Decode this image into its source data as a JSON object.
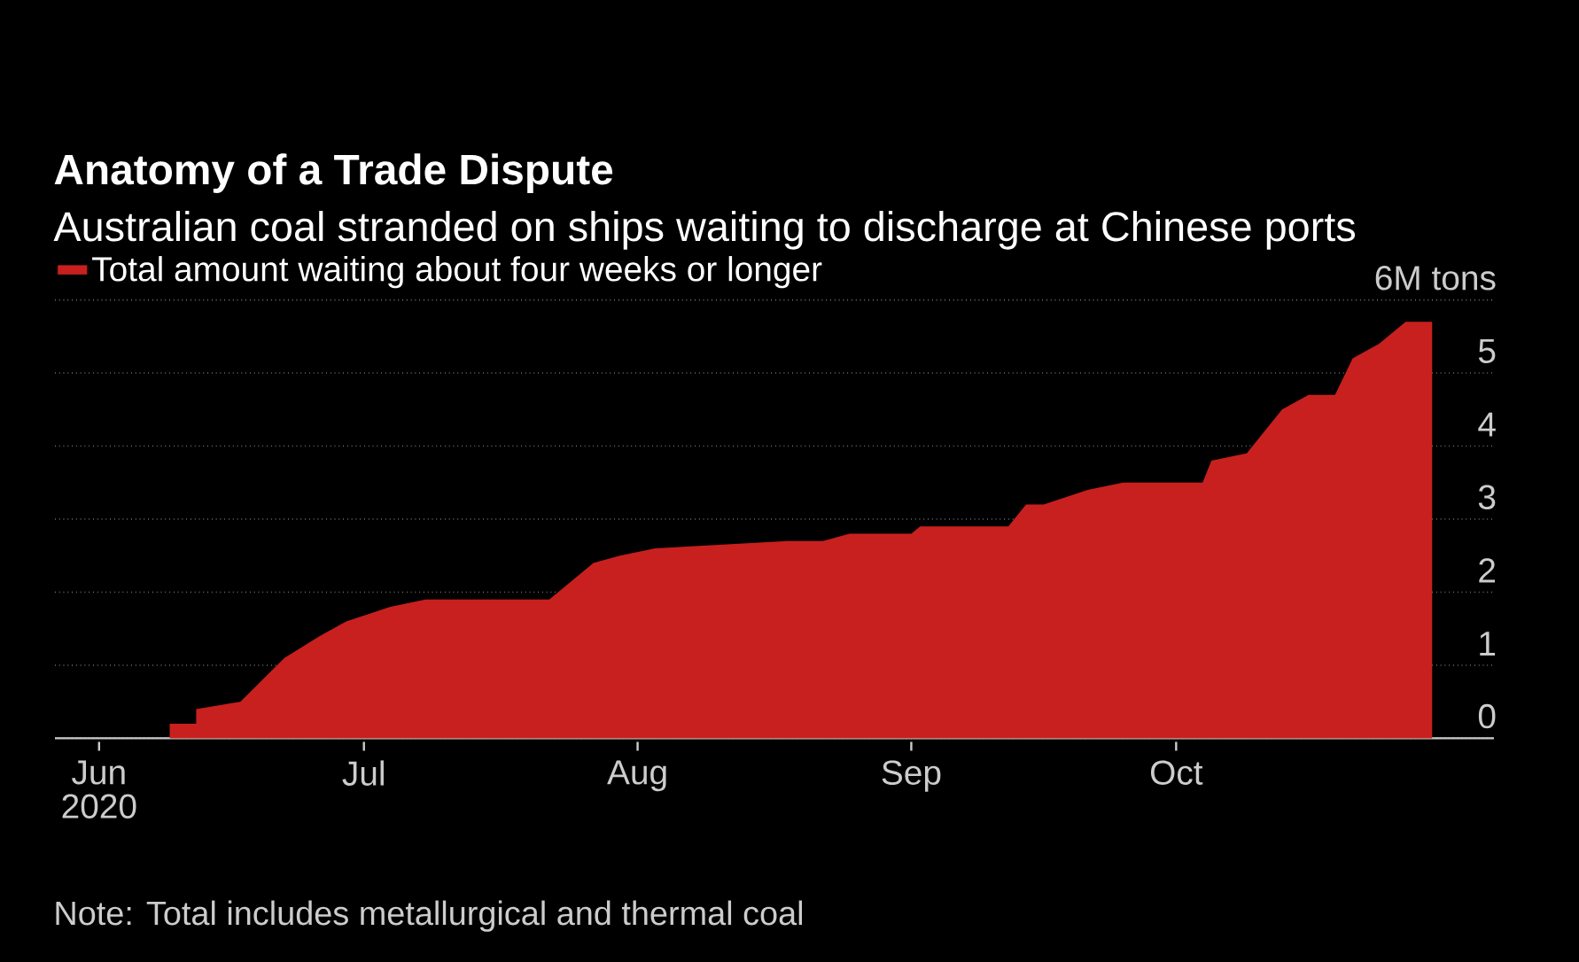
{
  "chart_data": {
    "type": "area",
    "title": "Anatomy of a Trade Dispute",
    "subtitle": "Australian coal stranded on ships waiting to discharge at Chinese ports",
    "series": [
      {
        "name": "Total amount waiting about four weeks or longer",
        "color": "#c8201e",
        "x": [
          "2020-06-09",
          "2020-06-12",
          "2020-06-12",
          "2020-06-17",
          "2020-06-22",
          "2020-06-26",
          "2020-06-29",
          "2020-07-04",
          "2020-07-08",
          "2020-07-22",
          "2020-07-24",
          "2020-07-27",
          "2020-07-30",
          "2020-08-03",
          "2020-08-18",
          "2020-08-22",
          "2020-08-25",
          "2020-09-01",
          "2020-09-02",
          "2020-09-12",
          "2020-09-14",
          "2020-09-16",
          "2020-09-21",
          "2020-09-25",
          "2020-10-04",
          "2020-10-05",
          "2020-10-09",
          "2020-10-11",
          "2020-10-13",
          "2020-10-16",
          "2020-10-19",
          "2020-10-21",
          "2020-10-24",
          "2020-10-27",
          "2020-10-30"
        ],
        "values": [
          0.2,
          0.2,
          0.4,
          0.5,
          1.1,
          1.4,
          1.6,
          1.8,
          1.9,
          1.9,
          2.1,
          2.4,
          2.5,
          2.6,
          2.7,
          2.7,
          2.8,
          2.8,
          2.9,
          2.9,
          3.2,
          3.2,
          3.4,
          3.5,
          3.5,
          3.8,
          3.9,
          4.2,
          4.5,
          4.7,
          4.7,
          5.2,
          5.4,
          5.7,
          5.7
        ]
      }
    ],
    "xlim": [
      "2020-05-27",
      "2020-11-06"
    ],
    "xticks": [
      {
        "value": "2020-06-01",
        "label": "Jun"
      },
      {
        "value": "2020-07-01",
        "label": "Jul"
      },
      {
        "value": "2020-08-01",
        "label": "Aug"
      },
      {
        "value": "2020-09-01",
        "label": "Sep"
      },
      {
        "value": "2020-10-01",
        "label": "Oct"
      }
    ],
    "ylim": [
      0,
      6
    ],
    "yticks": [
      0,
      1,
      2,
      3,
      4,
      5,
      {
        "value": 6,
        "label": "6M tons"
      }
    ],
    "grid": "y",
    "legend": "top left",
    "annotations": [
      "2020",
      "Note: Total includes metallurgical and thermal coal"
    ]
  }
}
